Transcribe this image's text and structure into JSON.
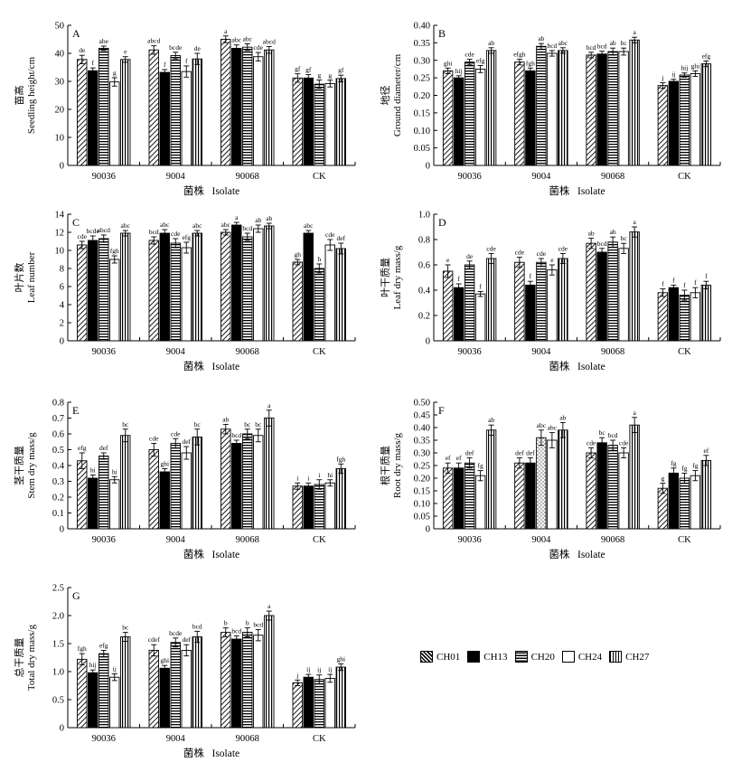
{
  "legend": {
    "items": [
      "CH01",
      "CH13",
      "CH20",
      "CH24",
      "CH27"
    ]
  },
  "chart_data": [
    {
      "type": "bar",
      "panel": "A",
      "title": "A",
      "ylabel_cn": "苗高",
      "ylabel_en": "Seedling height/cm",
      "xlabel": "菌株   Isolate",
      "categories": [
        "90036",
        "9004",
        "90068",
        "CK"
      ],
      "ylim": [
        0,
        50
      ],
      "yticks": [
        0,
        10,
        20,
        30,
        40,
        50
      ],
      "series": [
        {
          "name": "CH01",
          "values": [
            37.8,
            41.2,
            45.0,
            31.2
          ],
          "errors": [
            1.5,
            1.5,
            1.2,
            1.5
          ],
          "letters": [
            "de",
            "abcd",
            "a",
            "gf"
          ]
        },
        {
          "name": "CH13",
          "values": [
            33.8,
            33.2,
            41.8,
            31.2
          ],
          "errors": [
            1.0,
            1.0,
            1.2,
            1.2
          ],
          "letters": [
            "f",
            "f",
            "abc",
            "gf"
          ]
        },
        {
          "name": "CH20",
          "values": [
            41.8,
            39.2,
            42.2,
            29.0
          ],
          "errors": [
            0.8,
            1.2,
            1.2,
            1.5
          ],
          "letters": [
            "abe",
            "bcde",
            "abc",
            "g"
          ]
        },
        {
          "name": "CH24",
          "values": [
            29.8,
            33.5,
            38.8,
            29.2
          ],
          "errors": [
            1.5,
            2.0,
            1.5,
            1.2
          ],
          "letters": [
            "g",
            "f",
            "cde",
            "g"
          ]
        },
        {
          "name": "CH27",
          "values": [
            37.8,
            38.0,
            41.2,
            31.0
          ],
          "errors": [
            1.0,
            2.0,
            1.2,
            1.2
          ],
          "letters": [
            "e",
            "de",
            "abcd",
            "gf"
          ]
        }
      ]
    },
    {
      "type": "bar",
      "panel": "B",
      "title": "B",
      "ylabel_cn": "地径",
      "ylabel_en": "Ground diameter/cm",
      "xlabel": "菌株   Isolate",
      "categories": [
        "90036",
        "9004",
        "90068",
        "CK"
      ],
      "ylim": [
        0,
        0.4
      ],
      "yticks": [
        "0",
        "0.05",
        "0.10",
        "0.15",
        "0.20",
        "0.25",
        "0.30",
        "0.35",
        "0.40"
      ],
      "series": [
        {
          "name": "CH01",
          "values": [
            0.27,
            0.295,
            0.315,
            0.228
          ],
          "errors": [
            0.008,
            0.008,
            0.008,
            0.008
          ],
          "letters": [
            "ghi",
            "efgh",
            "bcd",
            "j"
          ]
        },
        {
          "name": "CH13",
          "values": [
            0.25,
            0.27,
            0.318,
            0.24
          ],
          "errors": [
            0.006,
            0.008,
            0.008,
            0.006
          ],
          "letters": [
            "hij",
            "fgh",
            "bcd",
            "ij"
          ]
        },
        {
          "name": "CH20",
          "values": [
            0.295,
            0.34,
            0.325,
            0.258
          ],
          "errors": [
            0.008,
            0.008,
            0.01,
            0.006
          ],
          "letters": [
            "cde",
            "ab",
            "ab",
            "hij"
          ]
        },
        {
          "name": "CH24",
          "values": [
            0.275,
            0.32,
            0.325,
            0.262
          ],
          "errors": [
            0.01,
            0.008,
            0.01,
            0.008
          ],
          "letters": [
            "efg",
            "bcd",
            "bc",
            "ghi"
          ]
        },
        {
          "name": "CH27",
          "values": [
            0.328,
            0.328,
            0.358,
            0.29
          ],
          "errors": [
            0.008,
            0.008,
            0.008,
            0.008
          ],
          "letters": [
            "ab",
            "abc",
            "a",
            "efg"
          ]
        }
      ]
    },
    {
      "type": "bar",
      "panel": "C",
      "title": "C",
      "ylabel_cn": "叶片数",
      "ylabel_en": "Leaf  number",
      "xlabel": "菌株   Isolate",
      "categories": [
        "90036",
        "9004",
        "90068",
        "CK"
      ],
      "ylim": [
        0,
        14
      ],
      "yticks": [
        0,
        2,
        4,
        6,
        8,
        10,
        12,
        14
      ],
      "series": [
        {
          "name": "CH01",
          "values": [
            10.6,
            11.1,
            12.0,
            8.7
          ],
          "errors": [
            0.4,
            0.4,
            0.3,
            0.3
          ],
          "letters": [
            "cde",
            "bcd",
            "abc",
            "gh"
          ]
        },
        {
          "name": "CH13",
          "values": [
            11.1,
            11.9,
            12.8,
            11.9
          ],
          "errors": [
            0.5,
            0.4,
            0.3,
            0.3
          ],
          "letters": [
            "bcde",
            "abc",
            "a",
            "abc"
          ]
        },
        {
          "name": "CH20",
          "values": [
            11.3,
            10.8,
            11.5,
            8.0
          ],
          "errors": [
            0.4,
            0.5,
            0.4,
            0.5
          ],
          "letters": [
            "abcd",
            "cde",
            "bcd",
            "h"
          ]
        },
        {
          "name": "CH24",
          "values": [
            9.0,
            10.3,
            12.4,
            10.6
          ],
          "errors": [
            0.4,
            0.6,
            0.4,
            0.6
          ],
          "letters": [
            "fgh",
            "efg",
            "ab",
            "cde"
          ]
        },
        {
          "name": "CH27",
          "values": [
            11.9,
            11.9,
            12.7,
            10.2
          ],
          "errors": [
            0.3,
            0.3,
            0.3,
            0.6
          ],
          "letters": [
            "abc",
            "abc",
            "ab",
            "def"
          ]
        }
      ]
    },
    {
      "type": "bar",
      "panel": "D",
      "title": "D",
      "ylabel_cn": "叶干质量",
      "ylabel_en": "Leaf dry mass/g",
      "xlabel": "菌株   Isolate",
      "categories": [
        "90036",
        "9004",
        "90068",
        "CK"
      ],
      "ylim": [
        0,
        1.0
      ],
      "yticks": [
        "0",
        "0.2",
        "0.4",
        "0.6",
        "0.8",
        "1.0"
      ],
      "series": [
        {
          "name": "CH01",
          "values": [
            0.55,
            0.62,
            0.77,
            0.38
          ],
          "errors": [
            0.05,
            0.04,
            0.04,
            0.03
          ],
          "letters": [
            "e",
            "cde",
            "ab",
            "f"
          ]
        },
        {
          "name": "CH13",
          "values": [
            0.42,
            0.44,
            0.7,
            0.42
          ],
          "errors": [
            0.03,
            0.03,
            0.03,
            0.02
          ],
          "letters": [
            "f",
            "f",
            "bcd",
            "f"
          ]
        },
        {
          "name": "CH20",
          "values": [
            0.6,
            0.62,
            0.78,
            0.36
          ],
          "errors": [
            0.03,
            0.03,
            0.04,
            0.04
          ],
          "letters": [
            "de",
            "cde",
            "ab",
            "f"
          ]
        },
        {
          "name": "CH24",
          "values": [
            0.37,
            0.56,
            0.73,
            0.38
          ],
          "errors": [
            0.02,
            0.04,
            0.04,
            0.04
          ],
          "letters": [
            "f",
            "e",
            "bc",
            "f"
          ]
        },
        {
          "name": "CH27",
          "values": [
            0.65,
            0.65,
            0.86,
            0.44
          ],
          "errors": [
            0.04,
            0.04,
            0.04,
            0.03
          ],
          "letters": [
            "cde",
            "cde",
            "a",
            "f"
          ]
        }
      ]
    },
    {
      "type": "bar",
      "panel": "E",
      "title": "E",
      "ylabel_cn": "茎干质量",
      "ylabel_en": "Stem dry mass/g",
      "xlabel": "菌株   Isolate",
      "categories": [
        "90036",
        "9004",
        "90068",
        "CK"
      ],
      "ylim": [
        0,
        0.8
      ],
      "yticks": [
        "0",
        "0.1",
        "0.2",
        "0.3",
        "0.4",
        "0.5",
        "0.6",
        "0.7",
        "0.8"
      ],
      "series": [
        {
          "name": "CH01",
          "values": [
            0.43,
            0.5,
            0.63,
            0.27
          ],
          "errors": [
            0.05,
            0.04,
            0.03,
            0.02
          ],
          "letters": [
            "efg",
            "cde",
            "ab",
            "i"
          ]
        },
        {
          "name": "CH13",
          "values": [
            0.32,
            0.36,
            0.54,
            0.27
          ],
          "errors": [
            0.02,
            0.02,
            0.02,
            0.02
          ],
          "letters": [
            "hi",
            "ghi",
            "bcd",
            "i"
          ]
        },
        {
          "name": "CH20",
          "values": [
            0.46,
            0.54,
            0.6,
            0.28
          ],
          "errors": [
            0.02,
            0.03,
            0.03,
            0.03
          ],
          "letters": [
            "def",
            "cde",
            "bc",
            "i"
          ]
        },
        {
          "name": "CH24",
          "values": [
            0.31,
            0.48,
            0.59,
            0.29
          ],
          "errors": [
            0.02,
            0.04,
            0.04,
            0.02
          ],
          "letters": [
            "hi",
            "def",
            "bc",
            "hi"
          ]
        },
        {
          "name": "CH27",
          "values": [
            0.59,
            0.58,
            0.7,
            0.38
          ],
          "errors": [
            0.04,
            0.05,
            0.05,
            0.03
          ],
          "letters": [
            "bc",
            "bc",
            "a",
            "fgh"
          ]
        }
      ]
    },
    {
      "type": "bar",
      "panel": "F",
      "title": "F",
      "ylabel_cn": "根干质量",
      "ylabel_en": "Root dry mass/g",
      "xlabel": "菌株   Isolate",
      "categories": [
        "90036",
        "9004",
        "90068",
        "CK"
      ],
      "ylim": [
        0,
        0.5
      ],
      "yticks": [
        "0",
        "0.05",
        "0.10",
        "0.15",
        "0.20",
        "0.25",
        "0.30",
        "0.35",
        "0.40",
        "0.45",
        "0.50"
      ],
      "series": [
        {
          "name": "CH01",
          "values": [
            0.24,
            0.26,
            0.3,
            0.16
          ],
          "errors": [
            0.02,
            0.02,
            0.02,
            0.02
          ],
          "letters": [
            "ef",
            "def",
            "cde",
            "g"
          ]
        },
        {
          "name": "CH13",
          "values": [
            0.24,
            0.26,
            0.34,
            0.22
          ],
          "errors": [
            0.02,
            0.02,
            0.02,
            0.02
          ],
          "letters": [
            "ef",
            "def",
            "bc",
            "fg"
          ]
        },
        {
          "name": "CH20",
          "values": [
            0.26,
            0.36,
            0.33,
            0.2
          ],
          "errors": [
            0.02,
            0.03,
            0.02,
            0.02
          ],
          "letters": [
            "def",
            "abc",
            "bcd",
            "fg"
          ]
        },
        {
          "name": "CH24",
          "values": [
            0.21,
            0.35,
            0.3,
            0.21
          ],
          "errors": [
            0.02,
            0.03,
            0.02,
            0.02
          ],
          "letters": [
            "fg",
            "abc",
            "cde",
            "fg"
          ]
        },
        {
          "name": "CH27",
          "values": [
            0.39,
            0.39,
            0.41,
            0.27
          ],
          "errors": [
            0.02,
            0.03,
            0.03,
            0.02
          ],
          "letters": [
            "ab",
            "ab",
            "a",
            "ef"
          ]
        }
      ]
    },
    {
      "type": "bar",
      "panel": "G",
      "title": "G",
      "ylabel_cn": "总干质量",
      "ylabel_en": "Total dry mass/g",
      "xlabel": "菌株   Isolate",
      "categories": [
        "90036",
        "9004",
        "90068",
        "CK"
      ],
      "ylim": [
        0,
        2.5
      ],
      "yticks": [
        "0",
        "0.5",
        "1.0",
        "1.5",
        "2.0",
        "2.5"
      ],
      "series": [
        {
          "name": "CH01",
          "values": [
            1.22,
            1.38,
            1.7,
            0.8
          ],
          "errors": [
            0.1,
            0.1,
            0.08,
            0.05
          ],
          "letters": [
            "fgh",
            "cdef",
            "b",
            "j"
          ]
        },
        {
          "name": "CH13",
          "values": [
            0.98,
            1.06,
            1.58,
            0.9
          ],
          "errors": [
            0.05,
            0.05,
            0.06,
            0.05
          ],
          "letters": [
            "hij",
            "ghi",
            "bcd",
            "ij"
          ]
        },
        {
          "name": "CH20",
          "values": [
            1.32,
            1.52,
            1.7,
            0.86
          ],
          "errors": [
            0.06,
            0.08,
            0.08,
            0.08
          ],
          "letters": [
            "efg",
            "bcde",
            "b",
            "ij"
          ]
        },
        {
          "name": "CH24",
          "values": [
            0.9,
            1.38,
            1.65,
            0.88
          ],
          "errors": [
            0.06,
            0.1,
            0.1,
            0.07
          ],
          "letters": [
            "ij",
            "def",
            "bcd",
            "ij"
          ]
        },
        {
          "name": "CH27",
          "values": [
            1.62,
            1.62,
            2.0,
            1.08
          ],
          "errors": [
            0.08,
            0.1,
            0.08,
            0.06
          ],
          "letters": [
            "bc",
            "bcd",
            "a",
            "ghi"
          ]
        }
      ]
    }
  ]
}
